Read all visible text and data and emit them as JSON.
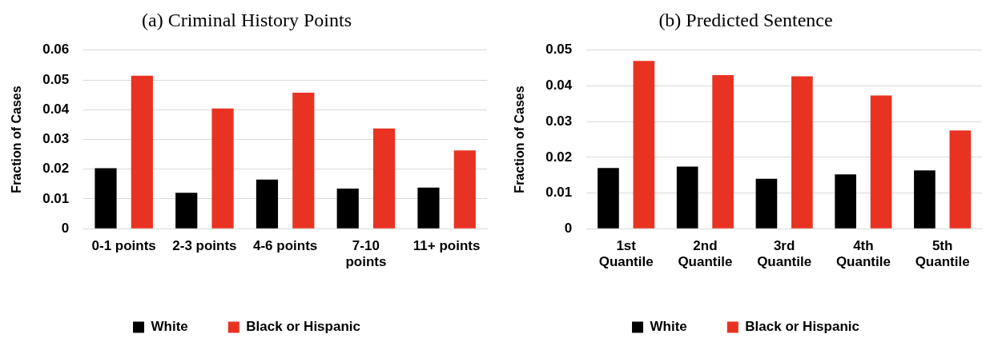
{
  "chart_data": [
    {
      "type": "bar",
      "title": "(a) Criminal History Points",
      "ylabel": "Fraction of Cases",
      "categories": [
        "0-1 points",
        "2-3 points",
        "4-6 points",
        "7-10 points",
        "11+ points"
      ],
      "series": [
        {
          "name": "White",
          "color": "#000000",
          "values": [
            0.0203,
            0.0121,
            0.0165,
            0.0135,
            0.0138
          ]
        },
        {
          "name": "Black or Hispanic",
          "color": "#e83323",
          "values": [
            0.0514,
            0.0404,
            0.0457,
            0.0337,
            0.0263
          ]
        }
      ],
      "ylim": [
        0,
        0.06
      ],
      "yticks": [
        {
          "value": 0,
          "label": "0"
        },
        0.01,
        0.02,
        0.03,
        0.04,
        0.05,
        0.06
      ],
      "grid": "y",
      "legend": "bottom"
    },
    {
      "type": "bar",
      "title": "(b) Predicted Sentence",
      "ylabel": "Fraction of Cases",
      "categories": [
        "1st Quantile",
        "2nd Quantile",
        "3rd Quantile",
        "4th Quantile",
        "5th Quantile"
      ],
      "series": [
        {
          "name": "White",
          "color": "#000000",
          "values": [
            0.017,
            0.0174,
            0.014,
            0.0152,
            0.0163
          ]
        },
        {
          "name": "Black or Hispanic",
          "color": "#e83323",
          "values": [
            0.047,
            0.043,
            0.0427,
            0.0373,
            0.0275
          ]
        }
      ],
      "ylim": [
        0,
        0.05
      ],
      "yticks": [
        {
          "value": 0,
          "label": "0"
        },
        0.01,
        0.02,
        0.03,
        0.04,
        0.05
      ],
      "grid": "y",
      "legend": "bottom"
    }
  ]
}
